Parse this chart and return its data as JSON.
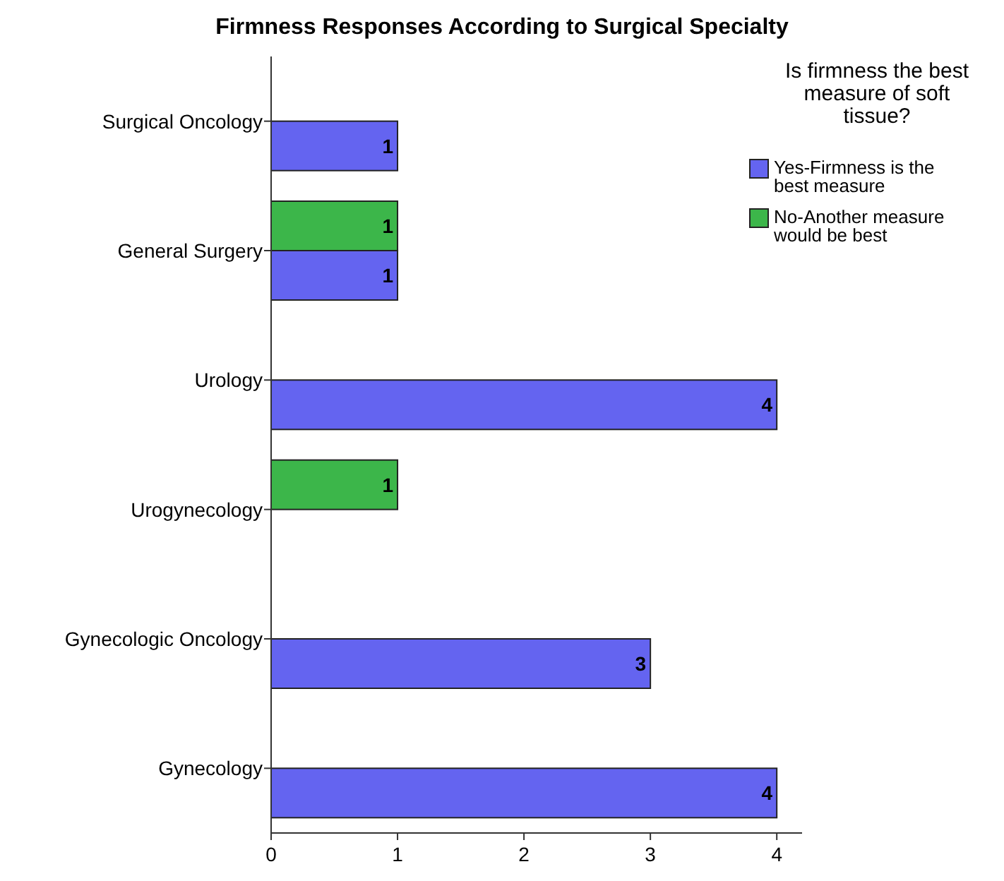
{
  "chart_data": {
    "type": "bar",
    "orientation": "horizontal",
    "title": "Firmness Responses According to Surgical Specialty",
    "legend_title": "Is firmness the best measure of soft tissue?",
    "categories": [
      "Surgical Oncology",
      "General Surgery",
      "Urology",
      "Urogynecology",
      "Gynecologic Oncology",
      "Gynecology"
    ],
    "series": [
      {
        "name": "Yes-Firmness is the best measure",
        "color": "#6464f0",
        "values": [
          1,
          1,
          4,
          null,
          3,
          4
        ]
      },
      {
        "name": "No-Another measure would be best",
        "color": "#3cb64a",
        "values": [
          null,
          1,
          null,
          1,
          null,
          null
        ]
      }
    ],
    "xlim": [
      0,
      4.2
    ],
    "xticks": [
      0,
      1,
      2,
      3,
      4
    ],
    "data_labels": true,
    "grid": false,
    "legend": "top right"
  }
}
